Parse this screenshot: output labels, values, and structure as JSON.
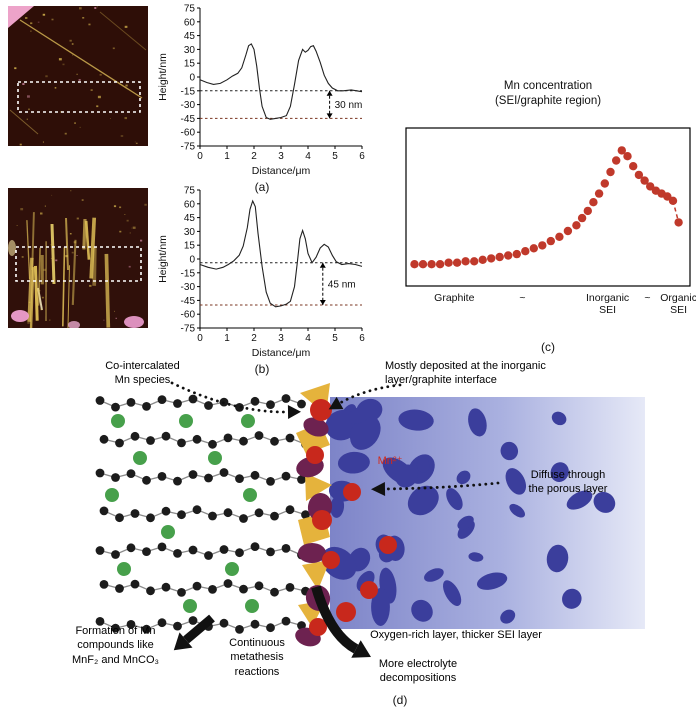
{
  "figure": {
    "panels": {
      "a": "(a)",
      "b": "(b)",
      "c": "(c)",
      "d": "(d)"
    }
  },
  "chart_data": [
    {
      "id": "profile_a",
      "type": "line",
      "xlabel": "Distance/μm",
      "ylabel": "Height/nm",
      "xlim": [
        0,
        6
      ],
      "ylim": [
        -75,
        75
      ],
      "xticks": [
        0,
        1,
        2,
        3,
        4,
        5,
        6
      ],
      "yticks": [
        75,
        60,
        45,
        30,
        15,
        0,
        -15,
        -30,
        -45,
        -60,
        -75
      ],
      "ref_lines": [
        -15,
        -45
      ],
      "ref_colors": [
        "#222222",
        "#7a3420"
      ],
      "annotation": {
        "text": "30 nm",
        "x": 4.8,
        "y_top": -15,
        "y_bottom": -45
      },
      "x": [
        0,
        0.25,
        0.5,
        0.75,
        1.0,
        1.2,
        1.4,
        1.55,
        1.7,
        1.8,
        1.9,
        2.0,
        2.1,
        2.2,
        2.3,
        2.45,
        2.6,
        2.8,
        3.0,
        3.2,
        3.35,
        3.5,
        3.65,
        3.8,
        3.9,
        4.0,
        4.1,
        4.2,
        4.3,
        4.45,
        4.6,
        4.75,
        4.9,
        5.1,
        5.3,
        5.6,
        6.0
      ],
      "y": [
        -3,
        -6,
        -8,
        -7,
        -3,
        1,
        4,
        10,
        24,
        34,
        36,
        30,
        12,
        -12,
        -32,
        -44,
        -46,
        -45,
        -44,
        -42,
        -32,
        -8,
        18,
        30,
        27,
        29,
        33,
        34,
        28,
        16,
        2,
        -7,
        -12,
        -15,
        -15,
        -14,
        -16
      ]
    },
    {
      "id": "profile_b",
      "type": "line",
      "xlabel": "Distance/μm",
      "ylabel": "Height/nm",
      "xlim": [
        0,
        6
      ],
      "ylim": [
        -75,
        75
      ],
      "xticks": [
        0,
        1,
        2,
        3,
        4,
        5,
        6
      ],
      "yticks": [
        75,
        60,
        45,
        30,
        15,
        0,
        -15,
        -30,
        -45,
        -60,
        -75
      ],
      "ref_lines": [
        -4,
        -50
      ],
      "ref_colors": [
        "#222222",
        "#7a3420"
      ],
      "annotation": {
        "text": "45 nm",
        "x": 4.55,
        "y_top": -4,
        "y_bottom": -50
      },
      "x": [
        0,
        0.3,
        0.6,
        0.85,
        1.05,
        1.25,
        1.45,
        1.6,
        1.75,
        1.85,
        1.95,
        2.05,
        2.15,
        2.3,
        2.45,
        2.6,
        2.8,
        3.0,
        3.2,
        3.35,
        3.5,
        3.6,
        3.7,
        3.8,
        3.9,
        4.0,
        4.15,
        4.3,
        4.45,
        4.6,
        4.75,
        4.9,
        5.05,
        5.25,
        5.5,
        5.75,
        6.0
      ],
      "y": [
        -6,
        -9,
        -11,
        -9,
        -6,
        -2,
        4,
        14,
        34,
        54,
        63,
        57,
        28,
        -8,
        -36,
        -48,
        -52,
        -51,
        -49,
        -46,
        -30,
        -5,
        22,
        31,
        22,
        6,
        -4,
        2,
        12,
        16,
        13,
        4,
        -3,
        -6,
        -5,
        -6,
        -8
      ]
    },
    {
      "id": "mn_concentration",
      "type": "scatter",
      "title": "Mn concentration",
      "subtitle": "(SEI/graphite region)",
      "point_color": "#c0392b",
      "x_labels": [
        "Graphite",
        "~",
        "Inorganic\nSEI",
        "~",
        "Organic\nSEI"
      ],
      "x_label_pos": [
        17,
        41,
        71,
        85,
        96
      ],
      "points": [
        [
          3,
          11
        ],
        [
          6,
          11
        ],
        [
          9,
          11
        ],
        [
          12,
          11
        ],
        [
          15,
          12
        ],
        [
          18,
          12
        ],
        [
          21,
          13
        ],
        [
          24,
          13
        ],
        [
          27,
          14
        ],
        [
          30,
          15
        ],
        [
          33,
          16
        ],
        [
          36,
          17
        ],
        [
          39,
          18
        ],
        [
          42,
          20
        ],
        [
          45,
          22
        ],
        [
          48,
          24
        ],
        [
          51,
          27
        ],
        [
          54,
          30
        ],
        [
          57,
          34
        ],
        [
          60,
          38
        ],
        [
          62,
          43
        ],
        [
          64,
          48
        ],
        [
          66,
          54
        ],
        [
          68,
          60
        ],
        [
          70,
          67
        ],
        [
          72,
          75
        ],
        [
          74,
          83
        ],
        [
          76,
          90
        ],
        [
          78,
          86
        ],
        [
          80,
          79
        ],
        [
          82,
          73
        ],
        [
          84,
          69
        ],
        [
          86,
          65
        ],
        [
          88,
          62
        ],
        [
          90,
          60
        ],
        [
          92,
          58
        ],
        [
          94,
          55
        ],
        [
          96,
          40
        ]
      ]
    }
  ],
  "diagram": {
    "co_intercalated": [
      "Co-intercalated",
      "Mn species"
    ],
    "deposited": [
      "Mostly deposited at the inorganic",
      "layer/graphite interface"
    ],
    "mn_ion": "Mn²⁺",
    "diffuse": [
      "Diffuse through",
      "the porous layer"
    ],
    "formation": [
      "Formation of Mn",
      "compounds like",
      "MnF₂ and MnCO₃"
    ],
    "metathesis": [
      "Continuous",
      "metathesis",
      "reactions"
    ],
    "oxygen_rich": "Oxygen-rich layer, thicker SEI layer",
    "electrolyte": [
      "More electrolyte",
      "decompositions"
    ]
  }
}
